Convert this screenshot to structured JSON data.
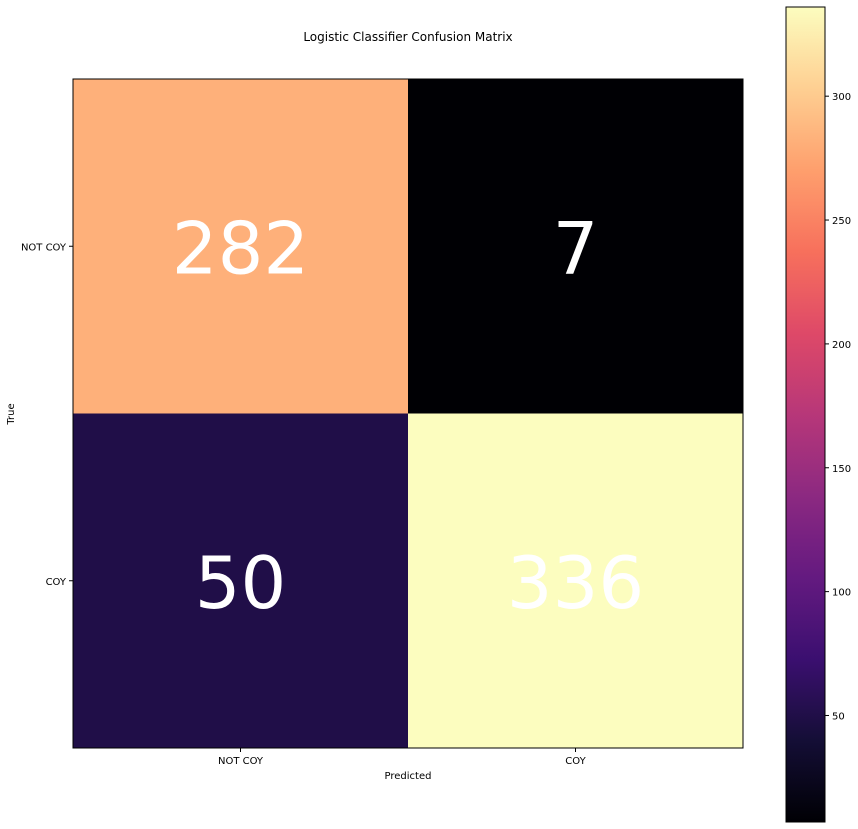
{
  "chart_data": {
    "type": "heatmap",
    "title": "Logistic Classifier Confusion Matrix",
    "xlabel": "Predicted",
    "ylabel": "True",
    "x_categories": [
      "NOT COY",
      "COY"
    ],
    "y_categories": [
      "NOT COY",
      "COY"
    ],
    "values": [
      [
        282,
        7
      ],
      [
        50,
        336
      ]
    ],
    "colormap": "magma",
    "colorbar": {
      "vmin": 7,
      "vmax": 336,
      "ticks": [
        50,
        100,
        150,
        200,
        250,
        300
      ],
      "tick_labels": [
        "50",
        "100",
        "150",
        "200",
        "250",
        "300"
      ]
    },
    "cell_text_color": "#ffffff",
    "grid": false
  }
}
